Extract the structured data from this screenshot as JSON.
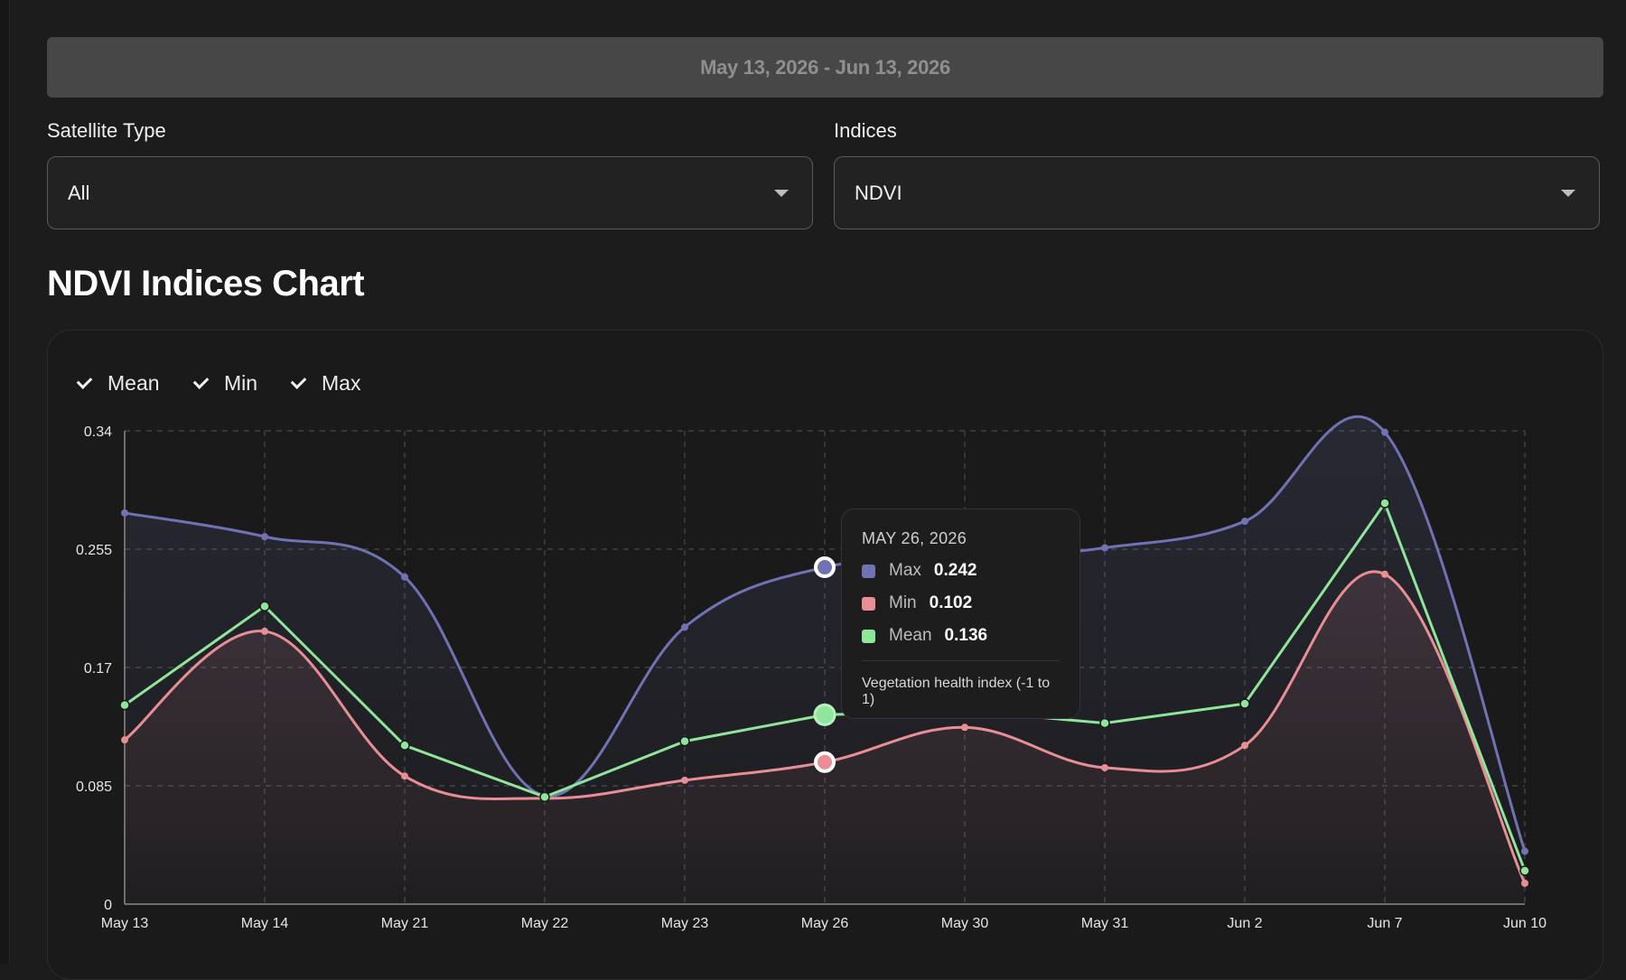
{
  "date_range": "May 13, 2026 - Jun 13, 2026",
  "filters": {
    "satellite": {
      "label": "Satellite Type",
      "value": "All"
    },
    "indices": {
      "label": "Indices",
      "value": "NDVI"
    }
  },
  "chart_title": "NDVI Indices Chart",
  "legend": [
    {
      "label": "Mean",
      "checked": true
    },
    {
      "label": "Min",
      "checked": true
    },
    {
      "label": "Max",
      "checked": true
    }
  ],
  "colors": {
    "max": "#6f73b3",
    "min": "#e98e95",
    "mean": "#8fe59a"
  },
  "tooltip": {
    "date": "MAY 26, 2026",
    "rows": [
      {
        "name": "Max",
        "value": "0.242",
        "color": "#6f73b3"
      },
      {
        "name": "Min",
        "value": "0.102",
        "color": "#e98e95"
      },
      {
        "name": "Mean",
        "value": "0.136",
        "color": "#8fe59a"
      }
    ],
    "note": "Vegetation health index (-1 to 1)"
  },
  "chart_data": {
    "type": "line",
    "categories": [
      "May 13",
      "May 14",
      "May 21",
      "May 22",
      "May 23",
      "May 26",
      "May 30",
      "May 31",
      "Jun 2",
      "Jun 7",
      "Jun 10"
    ],
    "series": [
      {
        "name": "Max",
        "values": [
          0.281,
          0.264,
          0.235,
          0.078,
          0.199,
          0.242,
          0.247,
          0.256,
          0.275,
          0.339,
          0.038
        ]
      },
      {
        "name": "Min",
        "values": [
          0.118,
          0.196,
          0.092,
          0.076,
          0.089,
          0.102,
          0.127,
          0.098,
          0.114,
          0.237,
          0.015
        ]
      },
      {
        "name": "Mean",
        "values": [
          0.143,
          0.214,
          0.114,
          0.077,
          0.117,
          0.136,
          0.139,
          0.13,
          0.144,
          0.288,
          0.024
        ]
      }
    ],
    "yticks": [
      "0.34",
      "0.255",
      "0.17",
      "0.085",
      "0"
    ],
    "ylim": [
      0,
      0.34
    ],
    "grid": true,
    "legend_position": "top-left",
    "highlighted_category": "May 26"
  }
}
